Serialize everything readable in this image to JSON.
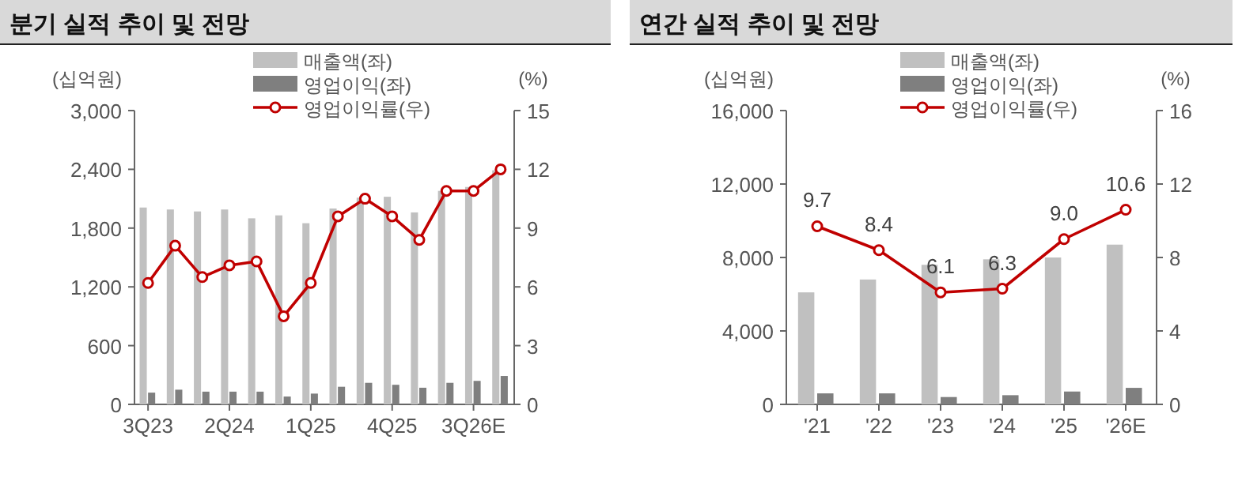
{
  "chart_data": [
    {
      "type": "bar",
      "title": "분기 실적 추이 및 전망",
      "ylabel": "(십억원)",
      "y2label": "(%)",
      "categories": [
        "3Q23",
        null,
        null,
        "2Q24",
        null,
        null,
        "1Q25",
        null,
        null,
        "4Q25",
        null,
        null,
        "3Q26E",
        null
      ],
      "series": [
        {
          "name": "매출액(좌)",
          "color": "#c0c0c0",
          "values": [
            2010,
            1990,
            1970,
            1990,
            1900,
            1930,
            1850,
            2000,
            2110,
            2120,
            1960,
            2180,
            2220,
            2390
          ]
        },
        {
          "name": "영업이익(좌)",
          "color": "#7f7f7f",
          "values": [
            120,
            150,
            130,
            130,
            130,
            80,
            110,
            180,
            220,
            200,
            170,
            220,
            240,
            290
          ]
        },
        {
          "name": "영업이익률(우)",
          "type": "line",
          "axis": "y2",
          "color": "#c00000",
          "marker": "circle",
          "values": [
            6.2,
            8.1,
            6.5,
            7.1,
            7.3,
            4.5,
            6.2,
            9.6,
            10.5,
            9.6,
            8.4,
            10.9,
            10.9,
            12.0
          ]
        }
      ],
      "ylim": [
        0,
        3000
      ],
      "yticks": [
        {
          "value": 0,
          "label": "0"
        },
        {
          "value": 600,
          "label": "600"
        },
        {
          "value": 1200,
          "label": "1,200"
        },
        {
          "value": 1800,
          "label": "1,800"
        },
        {
          "value": 2400,
          "label": "2,400"
        },
        {
          "value": 3000,
          "label": "3,000"
        }
      ],
      "y2lim": [
        0,
        15
      ],
      "y2ticks": [
        0,
        3,
        6,
        9,
        12,
        15
      ],
      "legend": "top"
    },
    {
      "type": "bar",
      "title": "연간 실적 추이 및 전망",
      "ylabel": "(십억원)",
      "y2label": "(%)",
      "categories": [
        "'21",
        "'22",
        "'23",
        "'24",
        "'25",
        "'26E"
      ],
      "series": [
        {
          "name": "매출액(좌)",
          "color": "#c0c0c0",
          "values": [
            6100,
            6800,
            7600,
            7900,
            8000,
            8700
          ]
        },
        {
          "name": "영업이익(좌)",
          "color": "#7f7f7f",
          "values": [
            600,
            600,
            400,
            500,
            700,
            900
          ]
        },
        {
          "name": "영업이익률(우)",
          "type": "line",
          "axis": "y2",
          "color": "#c00000",
          "marker": "circle",
          "values": [
            9.7,
            8.4,
            6.1,
            6.3,
            9.0,
            10.6
          ],
          "value_labels": [
            "9.7",
            "8.4",
            "6.1",
            "6.3",
            "9.0",
            "10.6"
          ]
        }
      ],
      "ylim": [
        0,
        16000
      ],
      "yticks": [
        {
          "value": 0,
          "label": "0"
        },
        {
          "value": 4000,
          "label": "4,000"
        },
        {
          "value": 8000,
          "label": "8,000"
        },
        {
          "value": 12000,
          "label": "12,000"
        },
        {
          "value": 16000,
          "label": "16,000"
        }
      ],
      "y2lim": [
        0,
        16
      ],
      "y2ticks": [
        0,
        4,
        8,
        12,
        16
      ],
      "legend": "top"
    }
  ]
}
